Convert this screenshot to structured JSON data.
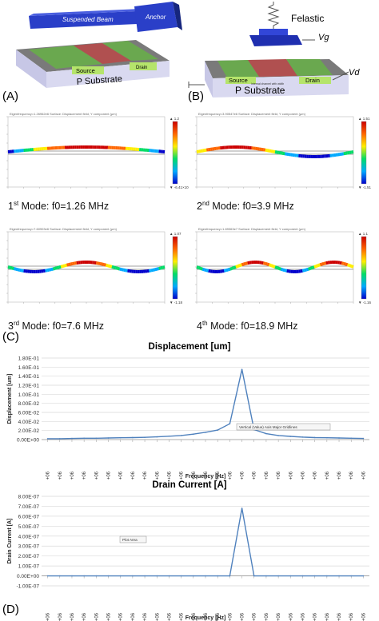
{
  "panels": {
    "A": "(A)",
    "B": "(B)",
    "C": "(C)",
    "D": "(D)"
  },
  "device_a": {
    "beam_label": "Suspended Beam",
    "anchor_label": "Anchor",
    "source_label": "Source",
    "drain_label": "Drain",
    "substrate_label": "P Substrate"
  },
  "device_b": {
    "spring_label": "Felastic",
    "gate_label": "Vg",
    "drain_voltage_label": "Vd",
    "source_label": "Source",
    "drain_label": "Drain",
    "substrate_label": "P Substrate",
    "layer_note": "Internal channel with width"
  },
  "modes": [
    {
      "ordinal": "1",
      "suffix": "st",
      "text": " Mode: f0=1.26 MHz",
      "sim_title": "Eigenfrequency=1.26962e6  Surface: Displacement field, Y component (μm)",
      "cmax": "1.2",
      "cmin": "-6.41×10⁻⁹",
      "shape": 1
    },
    {
      "ordinal": "2",
      "suffix": "nd",
      "text": " Mode: f0=3.9 MHz",
      "sim_title": "Eigenfrequency=3.90547e6  Surface: Displacement field, Y component (μm)",
      "cmax": "1.51",
      "cmin": "-1.51",
      "shape": 2
    },
    {
      "ordinal": "3",
      "suffix": "rd",
      "text": " Mode: f0=7.6 MHz",
      "sim_title": "Eigenfrequency=7.60903e6  Surface: Displacement field, Y component (μm)",
      "cmax": "1.07",
      "cmin": "-1.18",
      "shape": 3
    },
    {
      "ordinal": "4",
      "suffix": "th",
      "text": " Mode: f0=18.9 MHz",
      "sim_title": "Eigenfrequency=1.89363e7  Surface: Displacement field, Y component (μm)",
      "cmax": "1.1",
      "cmin": "-1.16",
      "shape": 4
    }
  ],
  "chart_data": [
    {
      "type": "line",
      "title": "Displacement [um]",
      "xlabel": "Frequency [Hz]",
      "ylabel": "Displacement [um]",
      "ylim": [
        0,
        0.18
      ],
      "yticks": [
        "0.00E+00",
        "2.00E-02",
        "4.00E-02",
        "6.00E-02",
        "8.00E-02",
        "1.00E-01",
        "1.20E-01",
        "1.40E-01",
        "1.60E-01",
        "1.80E-01"
      ],
      "categories": [
        "1.40E+06",
        "1.40E+06",
        "1.40E+06",
        "1.40E+06",
        "1.40E+06",
        "1.41E+06",
        "1.41E+06",
        "1.41E+06",
        "1.41E+06",
        "1.41E+06",
        "1.42E+06",
        "1.42E+06",
        "1.42E+06",
        "1.42E+06",
        "1.42E+06",
        "1.43E+06",
        "1.43E+06",
        "1.43E+06",
        "1.43E+06",
        "1.43E+06",
        "1.44E+06",
        "1.44E+06",
        "1.44E+06",
        "1.44E+06",
        "1.44E+06",
        "1.45E+06",
        "1.45E+06"
      ],
      "values": [
        0.002,
        0.002,
        0.0025,
        0.003,
        0.003,
        0.0035,
        0.004,
        0.0045,
        0.005,
        0.006,
        0.0075,
        0.009,
        0.012,
        0.016,
        0.021,
        0.035,
        0.155,
        0.022,
        0.013,
        0.009,
        0.007,
        0.0055,
        0.0045,
        0.004,
        0.0035,
        0.003,
        0.0025
      ],
      "annotation": "Vertical (Value) Axis Major Gridlines",
      "grid": true
    },
    {
      "type": "line",
      "title": "Drain Current [A]",
      "xlabel": "Frequency [Hz]",
      "ylabel": "Drain Current [A]",
      "ylim": [
        -1e-07,
        8e-07
      ],
      "yticks": [
        "-1.00E-07",
        "0.00E+00",
        "1.00E-07",
        "2.00E-07",
        "3.00E-07",
        "4.00E-07",
        "5.00E-07",
        "6.00E-07",
        "7.00E-07",
        "8.00E-07"
      ],
      "categories": [
        "1.40E+06",
        "1.40E+06",
        "1.40E+06",
        "1.40E+06",
        "1.40E+06",
        "1.41E+06",
        "1.41E+06",
        "1.41E+06",
        "1.41E+06",
        "1.41E+06",
        "1.42E+06",
        "1.42E+06",
        "1.42E+06",
        "1.42E+06",
        "1.42E+06",
        "1.43E+06",
        "1.43E+06",
        "1.43E+06",
        "1.43E+06",
        "1.43E+06",
        "1.44E+06",
        "1.44E+06",
        "1.44E+06",
        "1.44E+06",
        "1.44E+06",
        "1.45E+06",
        "1.45E+06"
      ],
      "values": [
        0,
        0,
        0,
        0,
        0,
        0,
        0,
        0,
        0,
        0,
        0,
        0,
        0,
        0,
        0,
        0,
        6.8e-07,
        0,
        0,
        0,
        0,
        0,
        0,
        0,
        0,
        0,
        0
      ],
      "annotation": "Plot Area",
      "grid": true
    }
  ],
  "colors": {
    "beam": "#2a3fc8",
    "substrate_side": "#d8d8ee",
    "channel_green": "#6aa84f",
    "channel_red": "#c0504d",
    "electrode": "#b5e46b",
    "line": "#4f81bd"
  }
}
